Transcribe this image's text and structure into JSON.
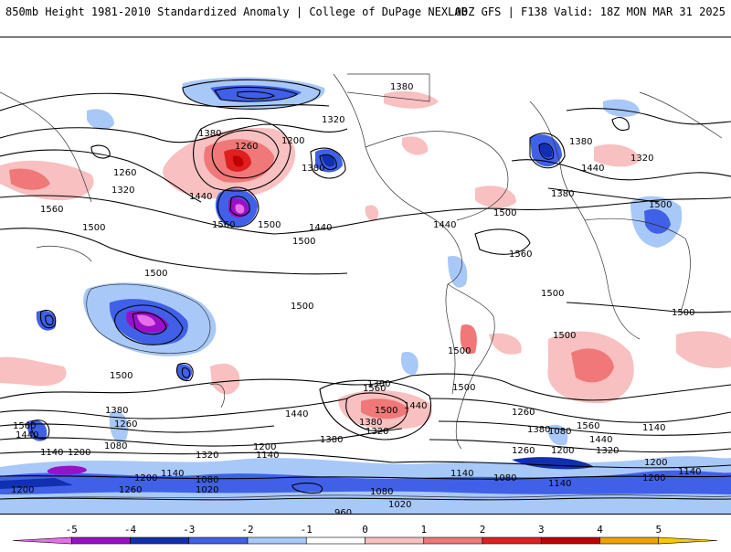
{
  "header": {
    "left_title": "850mb Height 1981-2010 Standardized Anomaly | College of DuPage NEXLAB",
    "right_title": "00Z GFS | F138 Valid: 18Z MON MAR 31 2025"
  },
  "colorbar": {
    "tick_labels": [
      "-5",
      "-4",
      "-3",
      "-2",
      "-1",
      "0",
      "1",
      "2",
      "3",
      "4",
      "5"
    ],
    "colors": [
      "#e86de8",
      "#9a10c8",
      "#1030b0",
      "#4060e8",
      "#a8c8f8",
      "#ffffff",
      "#f8c0c0",
      "#f07878",
      "#e02020",
      "#c00000",
      "#f0a000",
      "#f8c800"
    ]
  },
  "contour_labels": [
    "1380",
    "1200",
    "1260",
    "1320",
    "1380",
    "1320",
    "1380",
    "1440",
    "1260",
    "1320",
    "1560",
    "1500",
    "1440",
    "1560",
    "1500",
    "1500",
    "1440",
    "1380",
    "1440",
    "1500",
    "1500",
    "1560",
    "1380",
    "1500",
    "1500",
    "1500",
    "1500",
    "1500",
    "1500",
    "1560",
    "1380",
    "1440",
    "1500",
    "1500",
    "1560",
    "1380",
    "1260",
    "1560",
    "1440",
    "1440",
    "1380",
    "1380",
    "1200",
    "1320",
    "1440",
    "1140",
    "1140",
    "1080",
    "1260",
    "1200",
    "1140",
    "1200",
    "1080",
    "1020",
    "1320",
    "1200",
    "1260",
    "1140",
    "1080",
    "960",
    "1200",
    "1020",
    "1080",
    "1140",
    "1200",
    "1140",
    "1200",
    "1140",
    "1380",
    "1500",
    "1320",
    "1260",
    "1200",
    "1080"
  ]
}
